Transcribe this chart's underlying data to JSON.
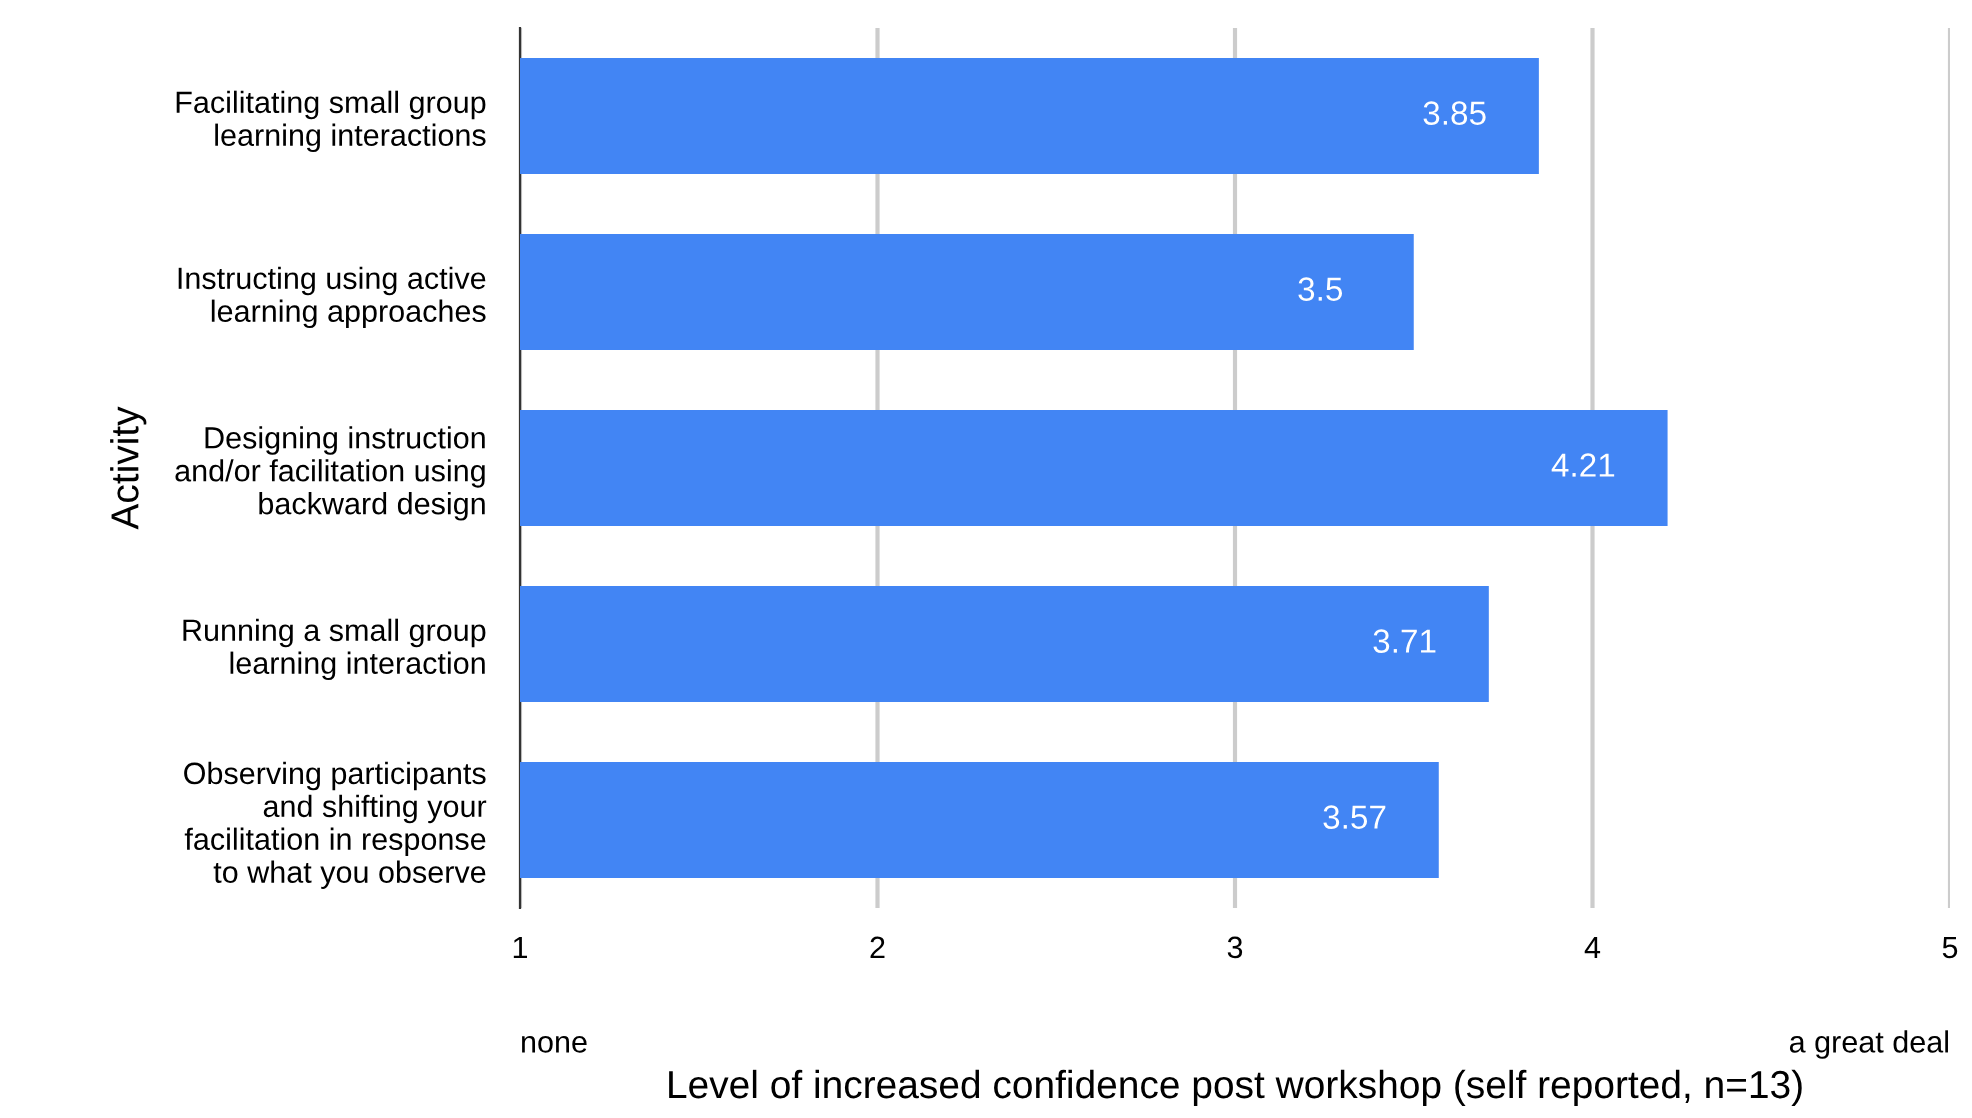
{
  "chart_data": {
    "type": "bar",
    "orientation": "horizontal",
    "xlabel": "Level of increased confidence post workshop (self reported, n=13)",
    "ylabel": "Activity",
    "categories": [
      "Facilitating small group\nlearning interactions",
      "Instructing using active\nlearning approaches",
      "Designing instruction\nand/or facilitation using\nbackward design",
      "Running a small group\nlearning interaction",
      "Observing participants\nand shifting your\nfacilitation in response\nto what you observe"
    ],
    "values": [
      3.85,
      3.5,
      4.21,
      3.71,
      3.57
    ],
    "color": "#4285f4",
    "data_labels": true,
    "xlim": [
      1,
      5
    ],
    "xticks": [
      1,
      2,
      3,
      4,
      5
    ],
    "grid": "x",
    "legend": false,
    "annotations": [
      "none",
      "a great deal"
    ]
  }
}
